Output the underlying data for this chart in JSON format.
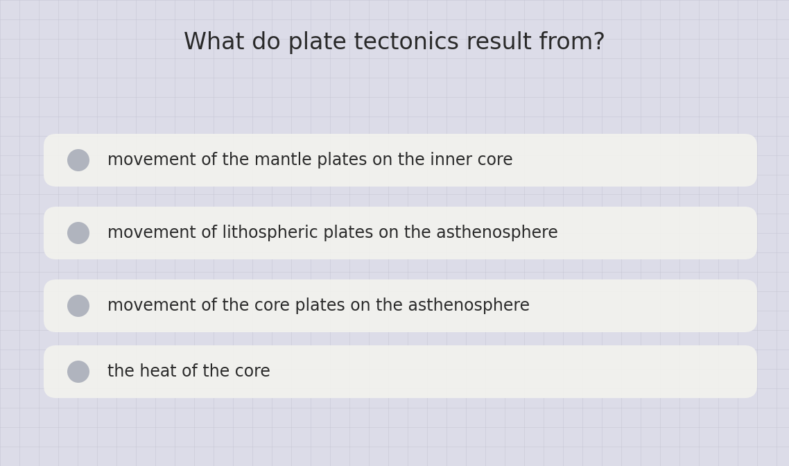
{
  "title": "What do plate tectonics result from?",
  "title_fontsize": 24,
  "title_color": "#2a2a2a",
  "background_color_light": "#dcdce8",
  "background_color_dark": "#b8b8cc",
  "grid_color": "#c0c0d0",
  "grid_alpha": 0.6,
  "options": [
    "movement of the mantle plates on the inner core",
    "movement of lithospheric plates on the asthenosphere",
    "movement of the core plates on the asthenosphere",
    "the heat of the core"
  ],
  "option_fontsize": 17,
  "option_text_color": "#2a2a2a",
  "option_box_color": "#f2f2ee",
  "circle_color": "#b0b4be",
  "circle_edge_color": "#9a9ea8"
}
